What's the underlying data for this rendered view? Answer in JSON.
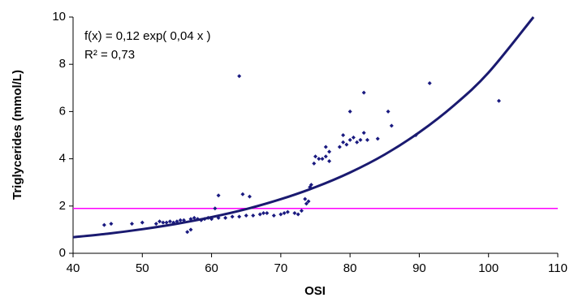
{
  "chart_data": {
    "type": "scatter",
    "xlabel": "OSI",
    "ylabel": "Triglycerides (mmol/L)",
    "annotations": [
      "f(x) = 0,12 exp( 0,04 x )",
      "R² = 0,73"
    ],
    "xlim": [
      40,
      110
    ],
    "xticks": [
      40,
      50,
      60,
      70,
      80,
      90,
      100,
      110
    ],
    "ylim": [
      0,
      10
    ],
    "yticks": [
      0,
      2,
      4,
      6,
      8,
      10
    ],
    "points": {
      "color": "#1a1a80",
      "x": [
        44.5,
        45.5,
        48.5,
        50,
        52,
        52.5,
        53,
        53.5,
        54,
        54.5,
        55,
        55.5,
        56,
        56.5,
        57,
        57,
        57.5,
        58,
        58.5,
        59,
        59.5,
        60,
        60.5,
        61,
        61,
        62,
        63,
        64,
        64,
        64.5,
        65,
        65.5,
        66,
        67,
        67.5,
        68,
        69,
        70,
        70.5,
        71,
        72,
        72.5,
        73,
        73.5,
        73.7,
        74,
        74.2,
        74.4,
        74.8,
        75,
        75.5,
        76,
        76.5,
        76.5,
        77,
        77,
        78.5,
        79,
        79,
        79.5,
        80,
        80,
        80.5,
        81,
        81.5,
        82,
        82,
        82.5,
        84,
        85.5,
        86,
        89.5,
        91.5,
        101.5
      ],
      "y": [
        1.2,
        1.25,
        1.25,
        1.3,
        1.25,
        1.35,
        1.3,
        1.3,
        1.35,
        1.3,
        1.35,
        1.4,
        1.4,
        0.9,
        1.0,
        1.45,
        1.5,
        1.45,
        1.4,
        1.45,
        1.5,
        1.45,
        1.9,
        2.45,
        1.5,
        1.5,
        1.55,
        7.5,
        1.55,
        2.5,
        1.6,
        2.4,
        1.6,
        1.65,
        1.7,
        1.7,
        1.6,
        1.65,
        1.7,
        1.75,
        1.7,
        1.65,
        1.8,
        2.3,
        2.1,
        2.2,
        2.8,
        2.9,
        3.8,
        4.1,
        4.0,
        4.0,
        4.1,
        4.5,
        4.3,
        3.9,
        4.5,
        4.7,
        5.0,
        4.6,
        4.8,
        6.0,
        4.9,
        4.7,
        4.8,
        6.8,
        5.1,
        4.8,
        4.85,
        6.0,
        5.4,
        5.0,
        7.2,
        6.45
      ]
    },
    "trend": {
      "color": "#1a1a70",
      "x": [
        40,
        45,
        50,
        55,
        60,
        65,
        70,
        75,
        80,
        85,
        90,
        95,
        100,
        106.5
      ],
      "values": [
        0.68,
        0.83,
        1.02,
        1.25,
        1.53,
        1.87,
        2.29,
        2.8,
        3.42,
        4.18,
        5.12,
        6.26,
        7.65,
        10
      ]
    },
    "reference_line": {
      "value": 1.9,
      "color": "#ff00ff"
    }
  }
}
